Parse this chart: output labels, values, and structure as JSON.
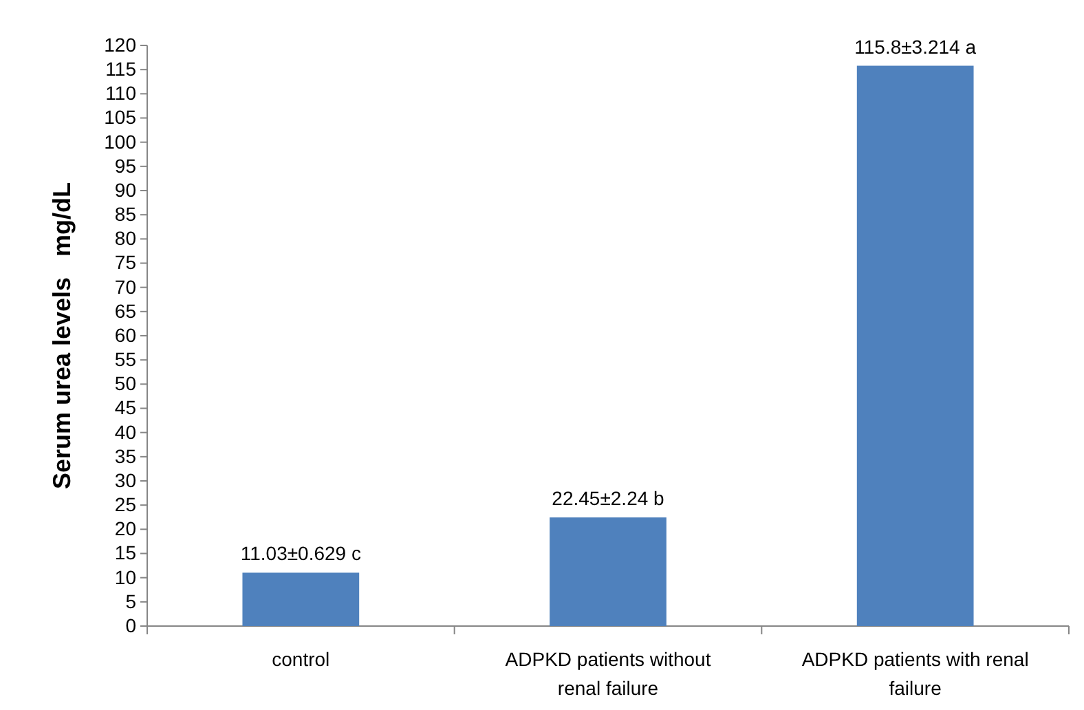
{
  "chart_data": {
    "type": "bar",
    "ylabel": "Serum urea levels   mg/dL",
    "categories": [
      "control",
      "ADPKD patients without renal failure",
      "ADPKD patients with renal failure"
    ],
    "values": [
      11.03,
      22.45,
      115.8
    ],
    "color": "#4f81bd",
    "value_labels": [
      "11.03±0.629 c",
      "22.45±2.24 b",
      "115.8±3.214 a"
    ],
    "ylim": [
      0,
      120
    ],
    "yticks": [
      0,
      5,
      10,
      15,
      20,
      25,
      30,
      35,
      40,
      45,
      50,
      55,
      60,
      65,
      70,
      75,
      80,
      85,
      90,
      95,
      100,
      105,
      110,
      115,
      120
    ],
    "grid": false
  }
}
